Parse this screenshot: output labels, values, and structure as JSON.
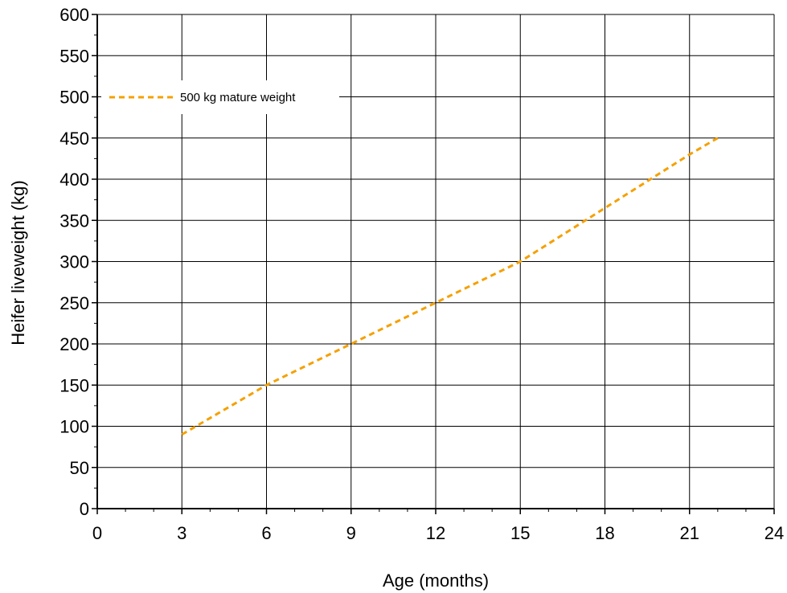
{
  "chart_data": {
    "type": "line",
    "xlabel": "Age (months)",
    "ylabel": "Heifer liveweight (kg)",
    "xlim": [
      0,
      24
    ],
    "ylim": [
      0,
      600
    ],
    "x_ticks": [
      0,
      3,
      6,
      9,
      12,
      15,
      18,
      21,
      24
    ],
    "y_ticks": [
      0,
      50,
      100,
      150,
      200,
      250,
      300,
      350,
      400,
      450,
      500,
      550,
      600
    ],
    "grid": true,
    "legend_position": "top-left",
    "series": [
      {
        "name": "500 kg mature weight",
        "color": "#F5A000",
        "style": "dotted",
        "x": [
          3,
          6,
          9,
          12,
          15,
          18,
          21,
          22
        ],
        "y": [
          90,
          150,
          200,
          250,
          300,
          365,
          430,
          450
        ]
      }
    ]
  }
}
